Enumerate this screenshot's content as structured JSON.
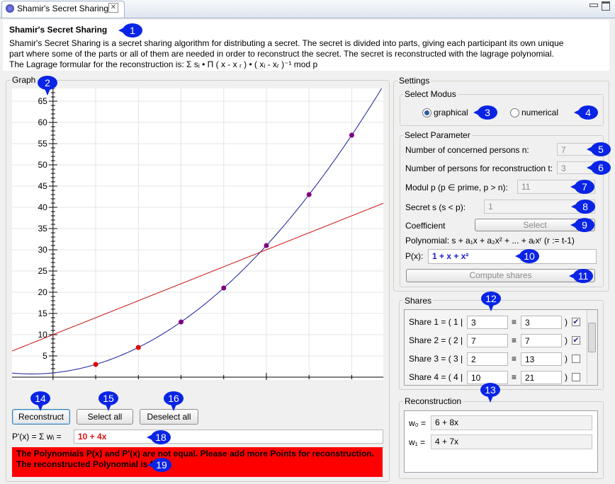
{
  "tab": {
    "title": "Shamir's Secret Sharing"
  },
  "header": {
    "title": "Shamir's Secret Sharing",
    "lines": [
      "Shamir's Secret Sharing is a secret sharing algorithm for distributing a secret. The secret is divided into parts, giving each participant its own unique",
      "part where some of the parts or all of them are needed in order to reconstruct the secret. The secret is reconstructed with the lagrage polynomial.",
      "The Lagrage formular for the reconstruction is: Σ sᵢ • Π ( x - x ᵣ ) • ( xᵢ - xᵣ )⁻¹ mod p"
    ]
  },
  "graph": {
    "title": "Graph",
    "xlim": [
      -0.96,
      7.74
    ],
    "ylim": [
      -0.67,
      68
    ],
    "xticks": [
      5
    ],
    "yticks": [
      5,
      10,
      15,
      20,
      25,
      30,
      35,
      40,
      45,
      50,
      55,
      60,
      65
    ],
    "yminor_step": 1,
    "xgrid_step": 1,
    "curves": [
      {
        "coefficients": [
          1,
          1,
          1
        ],
        "color": "#1a1a99"
      },
      {
        "coefficients": [
          10,
          4
        ],
        "color": "#cc1111"
      }
    ],
    "points": {
      "x": [
        1,
        2,
        3,
        4,
        5,
        6,
        7
      ],
      "y": [
        3,
        7,
        13,
        21,
        31,
        43,
        57
      ],
      "colors": [
        "#dd0000",
        "#dd0000",
        "#800080",
        "#800080",
        "#800080",
        "#800080",
        "#800080"
      ]
    }
  },
  "buttons": [
    "Reconstruct",
    "Select all",
    "Deselect all"
  ],
  "reconstructed": {
    "label": "P'(x) = Σ wᵢ =",
    "value": "10 + 4x"
  },
  "error": "The Polynomials P(x) and P'(x) are not equal. Please add more Points for reconstruction. The reconstructed Polynomial is false.",
  "settings": {
    "title": "Settings",
    "modus": {
      "title": "Select Modus",
      "options": [
        "graphical",
        "numerical"
      ],
      "selected": 0
    },
    "parameter": {
      "title": "Select Parameter",
      "n": {
        "label": "Number of concerned persons n:",
        "value": 7
      },
      "t": {
        "label": "Number of persons for reconstruction t:",
        "value": 3
      },
      "p": {
        "label": "Modul p (p ∈ prime, p > n):",
        "value": 11
      },
      "s": {
        "label": "Secret s (s < p):",
        "value": 1
      },
      "coefficient": {
        "label": "Coefficient",
        "button": "Select"
      },
      "polynomial": "Polynomial: s + a₁x + a₂x² + ... + aᵣxʳ    (r := t-1)",
      "px": {
        "label": "P(x):",
        "value": "1 + x + x²"
      },
      "compute": "Compute shares"
    }
  },
  "shares": {
    "title": "Shares",
    "separator": "≡",
    "close": ")",
    "rows": [
      {
        "label": "Share 1 = ( 1 |",
        "value": 3,
        "reduced": 3,
        "checked": true
      },
      {
        "label": "Share 2 = ( 2 |",
        "value": 7,
        "reduced": 7,
        "checked": true
      },
      {
        "label": "Share 3 = ( 3 |",
        "value": 2,
        "reduced": 13,
        "checked": false
      },
      {
        "label": "Share 4 = ( 4 |",
        "value": 10,
        "reduced": 21,
        "checked": false
      }
    ]
  },
  "reconstruction": {
    "title": "Reconstruction",
    "rows": [
      {
        "label": "w₀ =",
        "value": "6 + 8x"
      },
      {
        "label": "w₁ =",
        "value": "4 + 7x"
      }
    ]
  },
  "callouts": [
    1,
    2,
    3,
    4,
    5,
    6,
    7,
    8,
    9,
    10,
    11,
    12,
    13,
    14,
    15,
    16,
    18,
    19
  ]
}
